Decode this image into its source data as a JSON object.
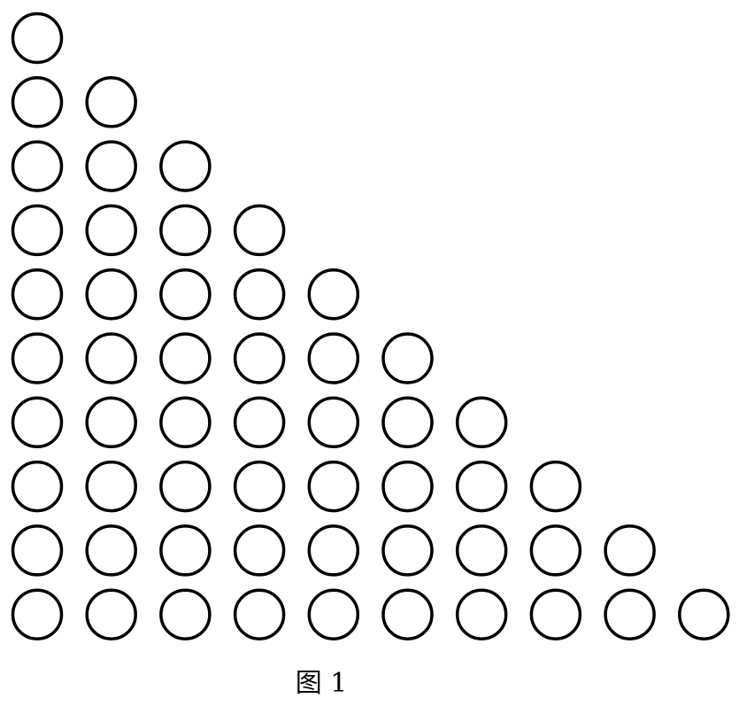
{
  "figure": {
    "caption": "图 1",
    "row_counts": [
      1,
      2,
      3,
      4,
      5,
      6,
      7,
      8,
      9,
      10
    ],
    "shape": "circle",
    "stroke_color": "#000000",
    "fill_color": "#ffffff"
  }
}
